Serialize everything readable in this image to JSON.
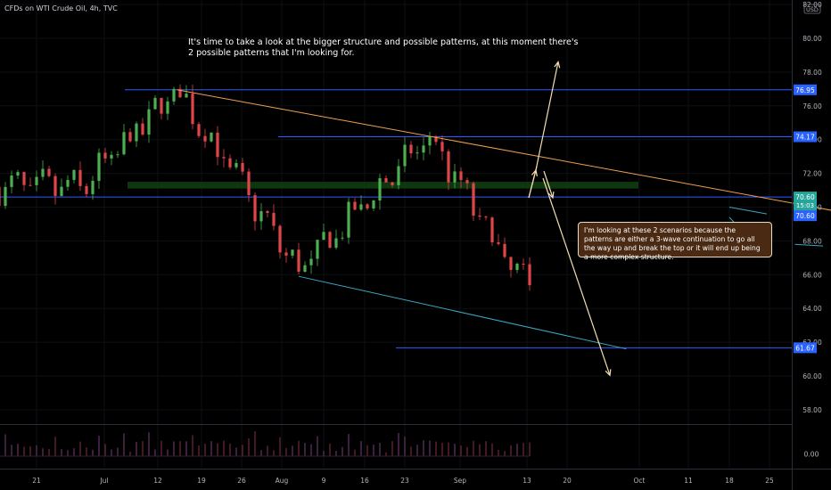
{
  "header": {
    "title": "CFDs on WTI Crude Oil, 4h, TVC",
    "currency": "USD"
  },
  "annotation_top": {
    "line1": "It's time to take a look at the bigger structure and possible patterns, at this moment there's",
    "line2": "2 possible patterns that I'm looking for."
  },
  "annotation_note": "I'm looking at these 2 scenarios because the patterns are either a 3-wave continuation to go all the way up and break the top or it will end up being a more complex structure.",
  "colors": {
    "background": "#000000",
    "up_candle": "#4caf50",
    "down_candle": "#e0454a",
    "level_line": "#2f5bff",
    "trend_line": "#f0a050",
    "channel_line": "#3aa6c0",
    "projection_arrow": "#f5deb0",
    "zone": "#0f3d12",
    "price_tag": "#2962ff",
    "last_price_tag": "#26a69a"
  },
  "chart_data": {
    "type": "candlestick",
    "symbol": "CFDs on WTI Crude Oil",
    "interval": "4h",
    "source": "TVC",
    "currency": "USD",
    "ylim": [
      56.6,
      82.0
    ],
    "yticks": [
      82.0,
      80.0,
      78.0,
      76.0,
      74.0,
      72.0,
      70.0,
      68.0,
      66.0,
      64.0,
      62.0,
      60.0,
      58.0
    ],
    "ytick_labels": [
      "82.00",
      "80.00",
      "78.00",
      "76.00",
      "74.00",
      "72.00",
      "70.00",
      "68.00",
      "66.00",
      "64.00",
      "62.00",
      "60.00",
      "58.00"
    ],
    "xticks": [
      "21",
      "Jul",
      "12",
      "19",
      "26",
      "Aug",
      "9",
      "16",
      "23",
      "Sep",
      "13",
      "20",
      "Oct",
      "11",
      "18",
      "25"
    ],
    "anchors": [
      {
        "date": "Jun 26",
        "price": 71.2
      },
      {
        "date": "Jul 6",
        "price": 76.95
      },
      {
        "date": "Jul 19",
        "price": 66.2
      },
      {
        "date": "Aug 2",
        "price": 74.17
      },
      {
        "date": "Aug 11",
        "price": 66.0
      },
      {
        "date": "Aug 23",
        "price": 61.67
      },
      {
        "date": "Sep 7",
        "price": 70.5
      },
      {
        "date": "Sep 10",
        "price": 68.8
      },
      {
        "date": "Sep 14",
        "price": 70.6
      }
    ],
    "levels": [
      {
        "price": 76.95,
        "label": "76.95"
      },
      {
        "price": 74.17,
        "label": "74.17"
      },
      {
        "price": 61.67,
        "label": "61.67"
      }
    ],
    "last_price": {
      "price": 70.6,
      "label": "70.60",
      "countdown": "15:03"
    },
    "prev_close": {
      "price": 70.6,
      "label": "70.60"
    },
    "zone": {
      "from": 71.1,
      "to": 71.5
    },
    "volume_axis_label": "0.00",
    "projections": [
      {
        "direction": "up",
        "from_price": 72.2,
        "to_price": 78.6
      },
      {
        "direction": "down",
        "from_price": 72.2,
        "to_price": 60.3
      }
    ]
  }
}
